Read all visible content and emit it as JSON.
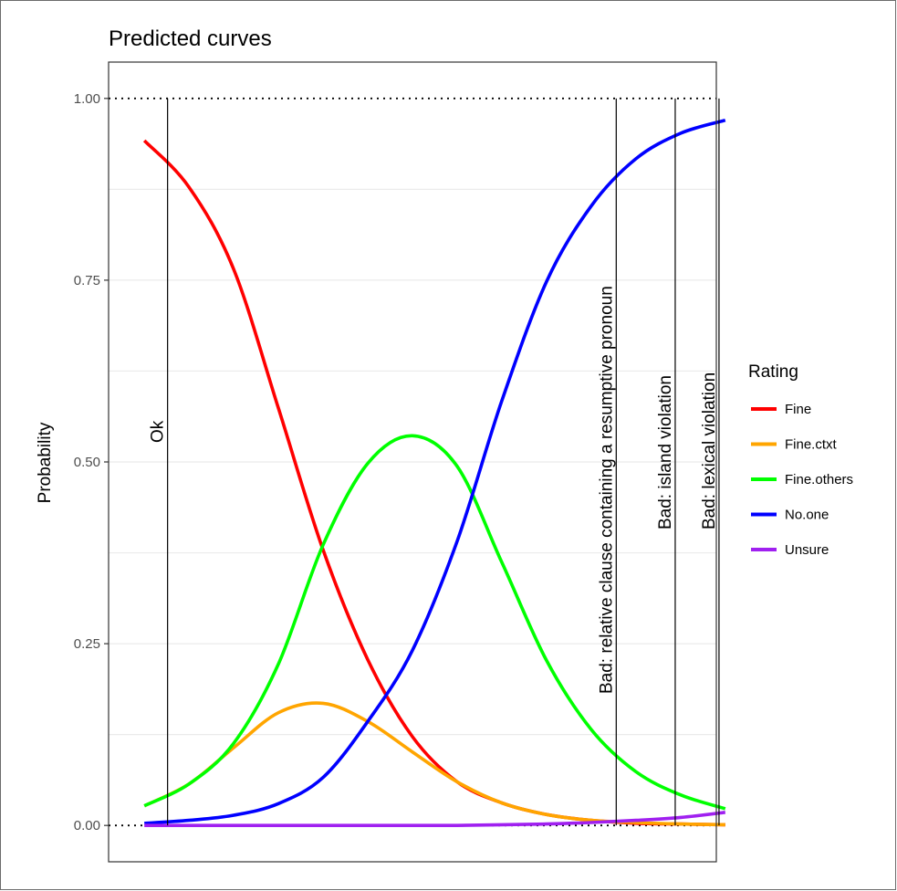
{
  "chart_data": {
    "type": "line",
    "title": "Predicted curves",
    "xlabel": "",
    "ylabel": "Probability",
    "xlim": [
      -3.4,
      3.4
    ],
    "ylim": [
      -0.05,
      1.05
    ],
    "y_ticks": [
      0.0,
      0.25,
      0.5,
      0.75,
      1.0
    ],
    "y_tick_labels": [
      "0.00",
      "0.25",
      "0.50",
      "0.75",
      "1.00"
    ],
    "reference_lines_y": [
      0.0,
      1.0
    ],
    "grid": true,
    "legend": {
      "title": "Rating",
      "position": "right",
      "entries": [
        "Fine",
        "Fine.ctxt",
        "Fine.others",
        "No.one",
        "Unsure"
      ]
    },
    "vertical_markers": [
      {
        "x": -2.74,
        "label": "Ok"
      },
      {
        "x": 2.28,
        "label": "Bad: relative clause containing a resumptive pronoun"
      },
      {
        "x": 2.94,
        "label": "Bad: island violation"
      },
      {
        "x": 3.43,
        "label": "Bad: lexical violation"
      }
    ],
    "x": [
      -3.0,
      -2.5,
      -2.0,
      -1.5,
      -1.0,
      -0.5,
      0.0,
      0.5,
      1.0,
      1.5,
      2.0,
      2.5,
      3.0,
      3.5
    ],
    "series": [
      {
        "name": "Fine",
        "color": "#ff0000",
        "values": [
          0.942,
          0.878,
          0.765,
          0.574,
          0.379,
          0.228,
          0.122,
          0.06,
          0.031,
          0.015,
          0.007,
          0.003,
          0.002,
          0.001
        ]
      },
      {
        "name": "Fine.ctxt",
        "color": "#ffa500",
        "values": [
          0.027,
          0.057,
          0.107,
          0.155,
          0.168,
          0.143,
          0.101,
          0.06,
          0.031,
          0.015,
          0.007,
          0.004,
          0.002,
          0.001
        ]
      },
      {
        "name": "Fine.others",
        "color": "#00ff00",
        "values": [
          0.027,
          0.057,
          0.113,
          0.222,
          0.386,
          0.498,
          0.536,
          0.494,
          0.362,
          0.227,
          0.132,
          0.074,
          0.042,
          0.023
        ]
      },
      {
        "name": "No.one",
        "color": "#0000ff",
        "values": [
          0.003,
          0.007,
          0.014,
          0.03,
          0.066,
          0.143,
          0.241,
          0.391,
          0.584,
          0.748,
          0.852,
          0.917,
          0.952,
          0.97
        ]
      },
      {
        "name": "Unsure",
        "color": "#a020f0",
        "values": [
          0.0,
          0.0,
          0.0,
          0.0,
          0.0,
          0.0,
          0.0,
          0.0,
          0.001,
          0.002,
          0.004,
          0.007,
          0.011,
          0.018
        ]
      }
    ]
  }
}
